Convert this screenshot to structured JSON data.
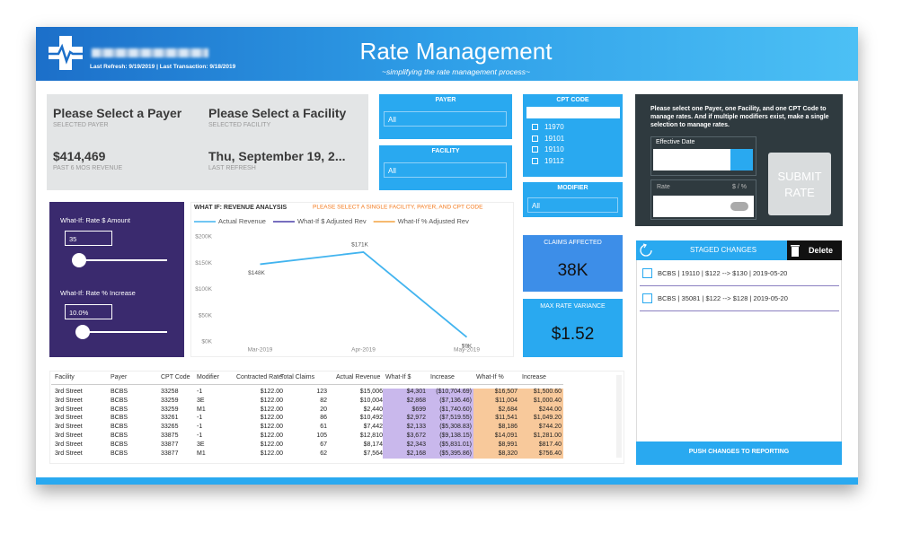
{
  "header": {
    "last_refresh": "Last Refresh: 9/19/2019 | Last Transaction: 9/18/2019",
    "title": "Rate Management",
    "subtitle": "~simplifying the rate management process~"
  },
  "summary": {
    "payer": "Please Select a Payer",
    "payer_label": "SELECTED PAYER",
    "revenue": "$414,469",
    "revenue_label": "PAST 6 MOS REVENUE",
    "facility": "Please Select a Facility",
    "facility_label": "SELECTED FACILITY",
    "refresh": "Thu, September 19, 2...",
    "refresh_label": "LAST REFRESH"
  },
  "slicers": {
    "payer": {
      "title": "PAYER",
      "value": "All"
    },
    "facility": {
      "title": "FACILITY",
      "value": "All"
    },
    "cpt": {
      "title": "CPT CODE",
      "options": [
        "11970",
        "19101",
        "19110",
        "19112"
      ]
    },
    "modifier": {
      "title": "MODIFIER",
      "value": "All"
    }
  },
  "submit": {
    "instructions": "Please select one Payer, one Facility, and one CPT Code to manage rates. And if multiple modifiers exist, make a single selection to manage rates.",
    "date_label": "Effective Date",
    "rate_label": "Rate",
    "rate_unit": "$ / %",
    "button": "SUBMIT RATE"
  },
  "whatif": {
    "amount_label": "What-If: Rate $ Amount",
    "amount": "35",
    "percent_label": "What-If: Rate % Increase",
    "percent": "10.0%"
  },
  "kpis": [
    {
      "label": "CLAIMS AFFECTED",
      "value": "38K"
    },
    {
      "label": "MAX RATE VARIANCE",
      "value": "$1.52"
    }
  ],
  "staged": {
    "title": "STAGED CHANGES",
    "delete": "Delete",
    "items": [
      "BCBS | 19110 | $122 --> $130 | 2019-05-20",
      "BCBS | 35081 | $122 --> $128 | 2019-05-20"
    ],
    "push": "PUSH CHANGES TO REPORTING"
  },
  "table": {
    "columns": [
      "Facility",
      "Payer",
      "CPT Code",
      "Modifier",
      "Contracted Rate",
      "Total Claims",
      "Actual Revenue",
      "What-If $",
      "Increase",
      "What-If %",
      "Increase"
    ],
    "rows": [
      [
        "3rd Street",
        "BCBS",
        "33258",
        "-1",
        "$122.00",
        "123",
        "$15,006",
        "$4,301",
        "($10,704.69)",
        "$16,507",
        "$1,500.60"
      ],
      [
        "3rd Street",
        "BCBS",
        "33259",
        "3E",
        "$122.00",
        "82",
        "$10,004",
        "$2,868",
        "($7,136.46)",
        "$11,004",
        "$1,000.40"
      ],
      [
        "3rd Street",
        "BCBS",
        "33259",
        "M1",
        "$122.00",
        "20",
        "$2,440",
        "$699",
        "($1,740.60)",
        "$2,684",
        "$244.00"
      ],
      [
        "3rd Street",
        "BCBS",
        "33261",
        "-1",
        "$122.00",
        "86",
        "$10,492",
        "$2,972",
        "($7,519.55)",
        "$11,541",
        "$1,049.20"
      ],
      [
        "3rd Street",
        "BCBS",
        "33265",
        "-1",
        "$122.00",
        "61",
        "$7,442",
        "$2,133",
        "($5,308.83)",
        "$8,186",
        "$744.20"
      ],
      [
        "3rd Street",
        "BCBS",
        "33875",
        "-1",
        "$122.00",
        "105",
        "$12,810",
        "$3,672",
        "($9,138.15)",
        "$14,091",
        "$1,281.00"
      ],
      [
        "3rd Street",
        "BCBS",
        "33877",
        "3E",
        "$122.00",
        "67",
        "$8,174",
        "$2,343",
        "($5,831.01)",
        "$8,991",
        "$817.40"
      ],
      [
        "3rd Street",
        "BCBS",
        "33877",
        "M1",
        "$122.00",
        "62",
        "$7,564",
        "$2,168",
        "($5,395.86)",
        "$8,320",
        "$756.40"
      ]
    ]
  },
  "chart_data": {
    "type": "line",
    "title": "WHAT IF: REVENUE ANALYSIS",
    "annotation": "PLEASE SELECT A SINGLE FACILITY, PAYER, AND CPT CODE",
    "categories": [
      "Mar-2019",
      "Apr-2019",
      "May-2019"
    ],
    "series": [
      {
        "name": "Actual Revenue",
        "color": "#42b4ef",
        "values": [
          148000,
          171000,
          9000
        ],
        "value_labels": [
          "$148K",
          "$171K",
          "$9K"
        ]
      },
      {
        "name": "What-If $ Adjusted Rev",
        "color": "#4a3fa8",
        "values": [
          null,
          null,
          null
        ]
      },
      {
        "name": "What-If % Adjusted Rev",
        "color": "#f4a341",
        "values": [
          null,
          null,
          null
        ]
      }
    ],
    "ylim": [
      0,
      200000
    ],
    "yticks": [
      {
        "value": 0,
        "label": "$0K"
      },
      {
        "value": 50000,
        "label": "$50K"
      },
      {
        "value": 100000,
        "label": "$100K"
      },
      {
        "value": 150000,
        "label": "$150K"
      },
      {
        "value": 200000,
        "label": "$200K"
      }
    ],
    "legend": "top",
    "grid": false
  }
}
